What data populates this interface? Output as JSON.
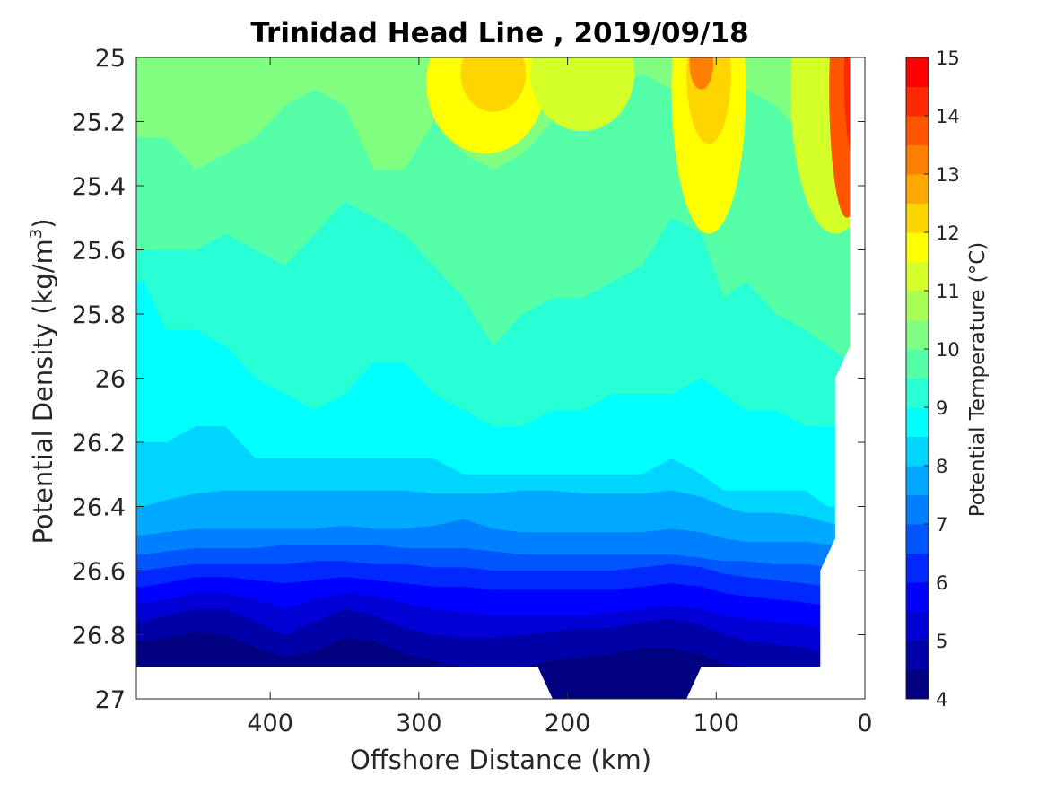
{
  "chart_data": {
    "type": "heatmap",
    "title": "Trinidad Head Line , 2019/09/18",
    "xlabel": "Offshore Distance (km)",
    "ylabel_main": "Potential Density (kg/m",
    "ylabel_sup": "3",
    "ylabel_end": ")",
    "colorbar_label": "Potential Temperature (°C)",
    "x_reversed": true,
    "y_reversed": true,
    "xlim": [
      0,
      490
    ],
    "ylim": [
      25,
      27
    ],
    "x_ticks": [
      400,
      300,
      200,
      100,
      0
    ],
    "x_tick_labels": [
      "400",
      "300",
      "200",
      "100",
      "0"
    ],
    "y_ticks": [
      25,
      25.2,
      25.4,
      25.6,
      25.8,
      26,
      26.2,
      26.4,
      26.6,
      26.8,
      27
    ],
    "y_tick_labels": [
      "25",
      "25.2",
      "25.4",
      "25.6",
      "25.8",
      "26",
      "26.2",
      "26.4",
      "26.6",
      "26.8",
      "27"
    ],
    "colorbar_ticks": [
      4,
      5,
      6,
      7,
      8,
      9,
      10,
      11,
      12,
      13,
      14,
      15
    ],
    "colorbar_tick_labels": [
      "4",
      "5",
      "6",
      "7",
      "8",
      "9",
      "10",
      "11",
      "12",
      "13",
      "14",
      "15"
    ],
    "colorbar_range": [
      4,
      15
    ],
    "contour_interval": 0.5,
    "colormap": [
      "#000080",
      "#0000a8",
      "#0000d5",
      "#0000ff",
      "#0028ff",
      "#0055ff",
      "#0080ff",
      "#00a8ff",
      "#00d5ff",
      "#00ffff",
      "#28ffd5",
      "#55ffa8",
      "#80ff80",
      "#a8ff55",
      "#d5ff28",
      "#ffff00",
      "#ffd500",
      "#ffa800",
      "#ff8000",
      "#ff5500",
      "#ff2800",
      "#ff0000",
      "#d50000",
      "#a80000"
    ],
    "grid": false,
    "x_stations": [
      485,
      470,
      450,
      430,
      410,
      390,
      370,
      350,
      330,
      310,
      290,
      270,
      250,
      230,
      210,
      190,
      170,
      150,
      130,
      110,
      95,
      80,
      60,
      40,
      25,
      10
    ],
    "isotherm_depths": {
      "10": [
        25.25,
        25.25,
        25.35,
        25.3,
        25.25,
        25.15,
        25.1,
        25.15,
        25.35,
        25.35,
        25.2,
        25.3,
        25.35,
        25.3,
        25.2,
        25.15,
        25.1,
        25.05,
        25.1,
        25.1,
        25.05,
        25.1,
        25.15,
        25.25,
        25.4,
        25.55
      ],
      "9.5": [
        25.6,
        25.6,
        25.6,
        25.55,
        25.6,
        25.65,
        25.55,
        25.45,
        25.5,
        25.55,
        25.65,
        25.75,
        25.9,
        25.8,
        25.75,
        25.75,
        25.7,
        25.65,
        25.5,
        25.55,
        25.75,
        25.7,
        25.8,
        25.85,
        25.9,
        25.95
      ],
      "9": [
        25.7,
        25.85,
        25.85,
        25.9,
        26.0,
        26.05,
        26.1,
        26.05,
        25.95,
        25.95,
        26.05,
        26.1,
        26.15,
        26.15,
        26.1,
        26.1,
        26.05,
        26.05,
        26.05,
        26.0,
        26.05,
        26.1,
        26.1,
        26.15,
        26.15,
        26.15
      ],
      "8.5": [
        26.2,
        26.2,
        26.15,
        26.15,
        26.25,
        26.25,
        26.25,
        26.25,
        26.25,
        26.25,
        26.25,
        26.3,
        26.3,
        26.3,
        26.3,
        26.3,
        26.3,
        26.3,
        26.25,
        26.3,
        26.35,
        26.35,
        26.35,
        26.35,
        26.4,
        26.4
      ],
      "8": [
        26.4,
        26.38,
        26.36,
        26.35,
        26.35,
        26.35,
        26.35,
        26.35,
        26.35,
        26.35,
        26.36,
        26.36,
        26.36,
        26.35,
        26.35,
        26.36,
        26.36,
        26.36,
        26.35,
        26.37,
        26.4,
        26.42,
        26.42,
        26.43,
        26.45,
        26.47
      ],
      "7.5": [
        26.49,
        26.48,
        26.47,
        26.47,
        26.47,
        26.47,
        26.47,
        26.46,
        26.47,
        26.47,
        26.46,
        26.44,
        26.47,
        26.48,
        26.48,
        26.48,
        26.48,
        26.48,
        26.47,
        26.48,
        26.5,
        26.51,
        26.51,
        26.51,
        26.52,
        26.52
      ],
      "7": [
        26.55,
        26.54,
        26.53,
        26.53,
        26.53,
        26.52,
        26.52,
        26.52,
        26.52,
        26.53,
        26.53,
        26.53,
        26.54,
        26.55,
        26.55,
        26.55,
        26.55,
        26.55,
        26.55,
        26.56,
        26.57,
        26.57,
        26.58,
        26.58,
        26.59,
        26.6
      ],
      "6.5": [
        26.6,
        26.59,
        26.58,
        26.58,
        26.58,
        26.58,
        26.57,
        26.57,
        26.58,
        26.58,
        26.59,
        26.59,
        26.6,
        26.6,
        26.6,
        26.6,
        26.6,
        26.59,
        26.58,
        26.59,
        26.61,
        26.62,
        26.63,
        26.64,
        26.65,
        26.66
      ],
      "6": [
        26.65,
        26.64,
        26.62,
        26.62,
        26.63,
        26.64,
        26.63,
        26.62,
        26.63,
        26.64,
        26.65,
        26.65,
        26.66,
        26.66,
        26.66,
        26.66,
        26.66,
        26.65,
        26.64,
        26.65,
        26.67,
        26.68,
        26.69,
        26.7,
        26.71,
        26.72
      ],
      "5.5": [
        26.7,
        26.69,
        26.67,
        26.67,
        26.69,
        26.72,
        26.69,
        26.67,
        26.68,
        26.7,
        26.72,
        26.73,
        26.74,
        26.74,
        26.74,
        26.74,
        26.73,
        26.72,
        26.71,
        26.72,
        26.74,
        26.75,
        26.76,
        26.77,
        26.78,
        26.79
      ],
      "5": [
        26.76,
        26.74,
        26.72,
        26.72,
        26.76,
        26.8,
        26.76,
        26.72,
        26.74,
        26.78,
        26.8,
        26.81,
        26.81,
        26.8,
        26.79,
        26.78,
        26.78,
        26.76,
        26.75,
        26.77,
        26.8,
        26.82,
        26.83,
        26.84,
        26.86,
        26.88
      ],
      "4.5": [
        26.82,
        26.81,
        26.79,
        26.8,
        26.84,
        26.87,
        26.85,
        26.81,
        26.82,
        26.86,
        26.88,
        26.9,
        26.91,
        26.9,
        26.88,
        26.87,
        26.86,
        26.84,
        26.84,
        26.86,
        26.89,
        26.9,
        26.91,
        26.92,
        26.93,
        26.95
      ]
    },
    "warm_patches": [
      {
        "x": 255,
        "y": 25.08,
        "rx": 40,
        "ry": 0.22,
        "value": 11.5
      },
      {
        "x": 250,
        "y": 25.05,
        "rx": 22,
        "ry": 0.12,
        "value": 12.3
      },
      {
        "x": 190,
        "y": 25.05,
        "rx": 35,
        "ry": 0.18,
        "value": 11.3
      },
      {
        "x": 105,
        "y": 25.1,
        "rx": 25,
        "ry": 0.45,
        "value": 11.6
      },
      {
        "x": 105,
        "y": 25.05,
        "rx": 15,
        "ry": 0.22,
        "value": 12.4
      },
      {
        "x": 110,
        "y": 25.02,
        "rx": 8,
        "ry": 0.08,
        "value": 13.2
      },
      {
        "x": 20,
        "y": 25.1,
        "rx": 30,
        "ry": 0.45,
        "value": 11.2
      },
      {
        "x": 12,
        "y": 25.1,
        "rx": 12,
        "ry": 0.4,
        "value": 13.5
      },
      {
        "x": 8,
        "y": 25.05,
        "rx": 6,
        "ry": 0.25,
        "value": 14.2
      }
    ],
    "bottom_mask": [
      [
        490,
        26.9
      ],
      [
        220,
        26.9
      ],
      [
        210,
        27.0
      ],
      [
        120,
        27.0
      ],
      [
        110,
        26.9
      ],
      [
        30,
        26.9
      ],
      [
        30,
        26.6
      ],
      [
        20,
        26.5
      ],
      [
        20,
        26.0
      ],
      [
        10,
        25.9
      ],
      [
        10,
        25.0
      ]
    ]
  }
}
